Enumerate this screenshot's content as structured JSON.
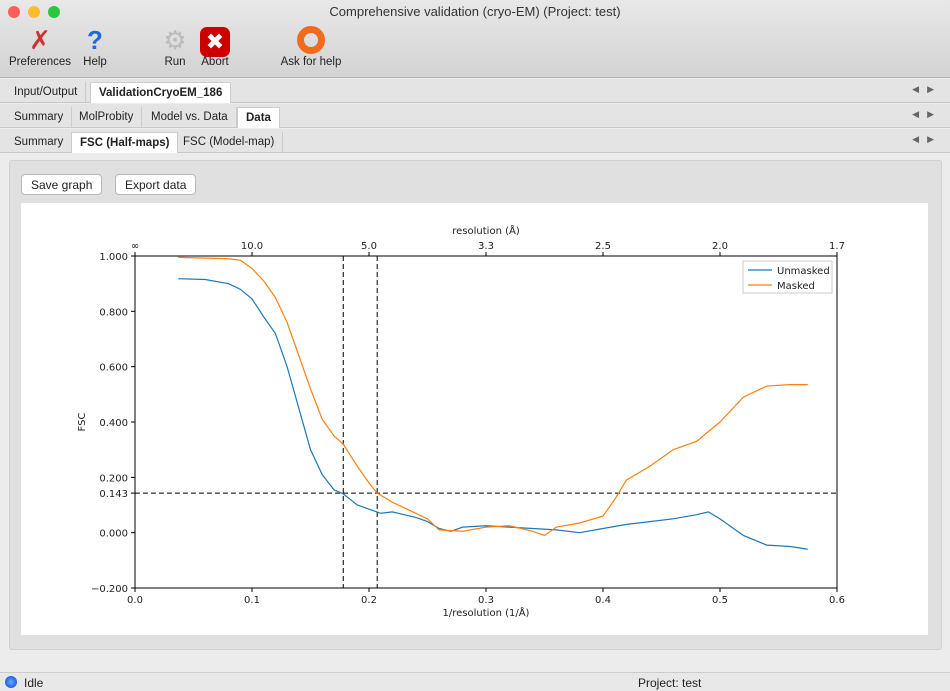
{
  "window": {
    "title": "Comprehensive validation (cryo-EM) (Project: test)"
  },
  "toolbar": [
    {
      "label": "Preferences",
      "icon": "wrench-screwdriver-icon"
    },
    {
      "label": "Help",
      "icon": "question-icon"
    },
    {
      "label": "Run",
      "icon": "gear-icon"
    },
    {
      "label": "Abort",
      "icon": "stop-icon"
    },
    {
      "label": "Ask for help",
      "icon": "lifebuoy-icon"
    }
  ],
  "tabs1": [
    "Input/Output",
    "ValidationCryoEM_186"
  ],
  "tabs2": [
    "Summary",
    "MolProbity",
    "Model vs. Data",
    "Data"
  ],
  "tabs3": [
    "Summary",
    "FSC (Half-maps)",
    "FSC (Model-map)"
  ],
  "buttons": {
    "save": "Save graph",
    "export": "Export data"
  },
  "status": {
    "left": "Idle",
    "right": "Project: test"
  },
  "chart_data": {
    "type": "line",
    "xlabel": "1/resolution (1/Å)",
    "ylabel": "FSC",
    "top_xlabel": "resolution (Å)",
    "xlim": [
      0,
      0.6
    ],
    "ylim": [
      -0.2,
      1.0
    ],
    "xticks": [
      "0.0",
      "0.1",
      "0.2",
      "0.3",
      "0.4",
      "0.5",
      "0.6"
    ],
    "yticks": [
      "−0.200",
      "0.000",
      "0.143",
      "0.200",
      "0.400",
      "0.600",
      "0.800",
      "1.000"
    ],
    "top_ticks": [
      "∞",
      "10.0",
      "5.0",
      "3.3",
      "2.5",
      "2.0",
      "1.7"
    ],
    "hline": 0.143,
    "vlines": [
      0.178,
      0.207
    ],
    "legend": "top-right",
    "series": [
      {
        "name": "Unmasked",
        "color": "#1f77b4",
        "x": [
          0.037,
          0.06,
          0.08,
          0.09,
          0.1,
          0.11,
          0.12,
          0.13,
          0.14,
          0.15,
          0.16,
          0.17,
          0.178,
          0.19,
          0.2,
          0.21,
          0.22,
          0.23,
          0.24,
          0.25,
          0.26,
          0.27,
          0.28,
          0.3,
          0.32,
          0.34,
          0.36,
          0.38,
          0.4,
          0.42,
          0.44,
          0.46,
          0.48,
          0.49,
          0.5,
          0.52,
          0.54,
          0.56,
          0.575
        ],
        "y": [
          0.918,
          0.915,
          0.9,
          0.88,
          0.845,
          0.78,
          0.72,
          0.6,
          0.45,
          0.3,
          0.21,
          0.155,
          0.14,
          0.1,
          0.085,
          0.07,
          0.075,
          0.065,
          0.055,
          0.04,
          0.015,
          0.005,
          0.02,
          0.025,
          0.02,
          0.015,
          0.01,
          0.0,
          0.015,
          0.03,
          0.04,
          0.05,
          0.065,
          0.075,
          0.05,
          -0.01,
          -0.045,
          -0.05,
          -0.06
        ]
      },
      {
        "name": "Masked",
        "color": "#ff7f0e",
        "x": [
          0.037,
          0.08,
          0.09,
          0.1,
          0.11,
          0.12,
          0.13,
          0.14,
          0.15,
          0.16,
          0.17,
          0.178,
          0.19,
          0.2,
          0.207,
          0.22,
          0.24,
          0.25,
          0.26,
          0.28,
          0.3,
          0.32,
          0.34,
          0.35,
          0.36,
          0.38,
          0.4,
          0.41,
          0.42,
          0.44,
          0.46,
          0.48,
          0.5,
          0.52,
          0.54,
          0.56,
          0.575
        ],
        "y": [
          0.995,
          0.99,
          0.985,
          0.955,
          0.91,
          0.85,
          0.76,
          0.64,
          0.52,
          0.41,
          0.35,
          0.32,
          0.24,
          0.18,
          0.143,
          0.11,
          0.07,
          0.05,
          0.01,
          0.005,
          0.02,
          0.025,
          0.005,
          -0.01,
          0.02,
          0.035,
          0.06,
          0.12,
          0.19,
          0.24,
          0.3,
          0.33,
          0.4,
          0.49,
          0.53,
          0.535,
          0.535
        ]
      }
    ]
  }
}
